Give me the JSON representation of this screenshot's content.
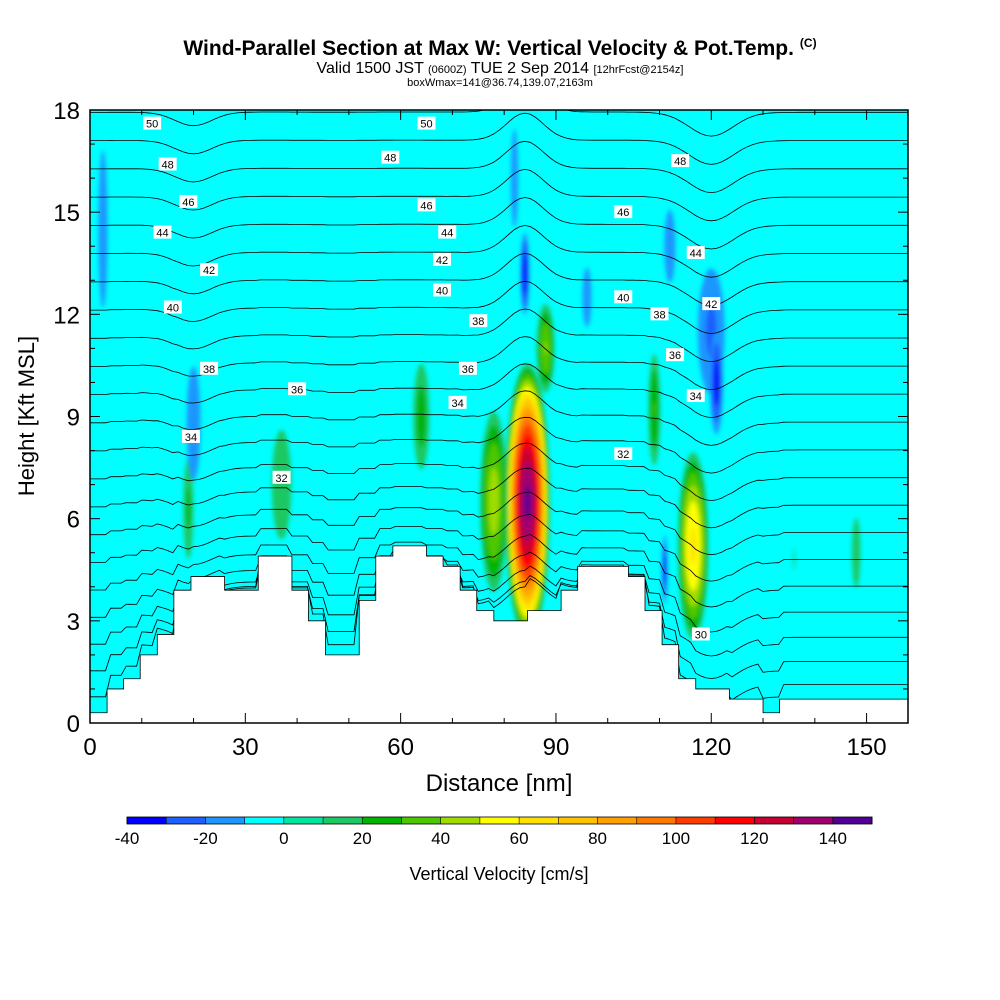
{
  "chart_data": {
    "type": "contour",
    "title": "Wind-Parallel Section at Max W: Vertical Velocity & Pot.Temp.",
    "copyright_mark": "(C)",
    "subtitle": {
      "valid": "Valid 1500 JST",
      "zulu": "(0600Z)",
      "date": "TUE 2 Sep 2014",
      "forecast": "[12hrFcst@2154z]"
    },
    "box_info": "boxWmax=141@36.74,139.07,2163m",
    "xlabel": "Distance [nm]",
    "ylabel": "Height [Kft MSL]",
    "xlim": [
      0,
      158
    ],
    "ylim": [
      0,
      18
    ],
    "x_ticks": [
      0,
      30,
      60,
      90,
      120,
      150
    ],
    "y_ticks": [
      0,
      3,
      6,
      9,
      12,
      15,
      18
    ],
    "colorbar": {
      "label": "Vertical Velocity [cm/s]",
      "levels": [
        -40,
        -30,
        -20,
        -10,
        0,
        10,
        20,
        30,
        40,
        50,
        60,
        70,
        80,
        90,
        100,
        110,
        120,
        130,
        140,
        150
      ],
      "tick_labels": [
        -40,
        -20,
        0,
        20,
        40,
        60,
        80,
        100,
        120,
        140
      ],
      "colors": [
        "#0000ff",
        "#1e5fff",
        "#1e96ff",
        "#00ffff",
        "#00e6a0",
        "#1ec864",
        "#00b400",
        "#4bc800",
        "#a0dc00",
        "#ffff00",
        "#ffe100",
        "#ffc300",
        "#ffa000",
        "#ff7800",
        "#ff3c00",
        "#ff0000",
        "#c80032",
        "#a0006e",
        "#500096"
      ],
      "background": "#00ffff"
    },
    "velocity_features": [
      {
        "x": 84.5,
        "y": 6.5,
        "rx": 4.5,
        "ry": 4.2,
        "value": 141
      },
      {
        "x": 116.5,
        "y": 5.2,
        "rx": 3.2,
        "ry": 3.0,
        "value": 62
      },
      {
        "x": 78,
        "y": 6.5,
        "rx": 3.0,
        "ry": 3.0,
        "value": 45
      },
      {
        "x": 88,
        "y": 11.0,
        "rx": 2.0,
        "ry": 1.5,
        "value": 40
      },
      {
        "x": 109,
        "y": 9.2,
        "rx": 1.4,
        "ry": 2.0,
        "value": 30
      },
      {
        "x": 64,
        "y": 9.0,
        "rx": 2.0,
        "ry": 2.0,
        "value": 25
      },
      {
        "x": 19,
        "y": 6.3,
        "rx": 1.3,
        "ry": 2.0,
        "value": 22
      },
      {
        "x": 37,
        "y": 7.0,
        "rx": 3.5,
        "ry": 3.0,
        "value": 14
      },
      {
        "x": 31,
        "y": 13.3,
        "rx": 3.5,
        "ry": 1.5,
        "value": 8
      },
      {
        "x": 12,
        "y": 11.5,
        "rx": 2.5,
        "ry": 5.0,
        "value": 7
      },
      {
        "x": 51,
        "y": 13.0,
        "rx": 2.0,
        "ry": 4.5,
        "value": 7
      },
      {
        "x": 66,
        "y": 15.5,
        "rx": 1.5,
        "ry": 2.0,
        "value": 8
      },
      {
        "x": 143,
        "y": 12.3,
        "rx": 5.0,
        "ry": 4.5,
        "value": 7
      },
      {
        "x": 148,
        "y": 5.0,
        "rx": 2.0,
        "ry": 2.5,
        "value": 12
      },
      {
        "x": 136,
        "y": 4.8,
        "rx": 1.5,
        "ry": 2.5,
        "value": 10
      },
      {
        "x": 28,
        "y": 2.9,
        "rx": 3.0,
        "ry": 2.0,
        "value": 12
      },
      {
        "x": 83,
        "y": 17.0,
        "rx": 3.0,
        "ry": 1.5,
        "value": -8
      },
      {
        "x": 84,
        "y": 13.2,
        "rx": 1.0,
        "ry": 1.4,
        "value": -38
      },
      {
        "x": 82,
        "y": 16.0,
        "rx": 1.2,
        "ry": 2.5,
        "value": -15
      },
      {
        "x": 20,
        "y": 8.8,
        "rx": 2.0,
        "ry": 2.5,
        "value": -18
      },
      {
        "x": 2.5,
        "y": 14.5,
        "rx": 1.5,
        "ry": 4.0,
        "value": -15
      },
      {
        "x": 120,
        "y": 11.5,
        "rx": 3.5,
        "ry": 2.5,
        "value": -22
      },
      {
        "x": 121,
        "y": 10.0,
        "rx": 1.5,
        "ry": 1.8,
        "value": -35
      },
      {
        "x": 112,
        "y": 14.0,
        "rx": 2.0,
        "ry": 2.0,
        "value": -14
      },
      {
        "x": 111,
        "y": 4.5,
        "rx": 0.6,
        "ry": 1.2,
        "value": -35
      },
      {
        "x": 96,
        "y": 12.5,
        "rx": 1.5,
        "ry": 1.5,
        "value": -15
      }
    ],
    "theta_levels": [
      30,
      31,
      32,
      33,
      34,
      35,
      36,
      37,
      38,
      39,
      40,
      41,
      42,
      43,
      44,
      45,
      46,
      47,
      48,
      49,
      50,
      51
    ],
    "isentrope_labels": [
      {
        "x": 12,
        "y": 17.6,
        "text": "50"
      },
      {
        "x": 65,
        "y": 17.6,
        "text": "50"
      },
      {
        "x": 15,
        "y": 16.4,
        "text": "48"
      },
      {
        "x": 58,
        "y": 16.6,
        "text": "48"
      },
      {
        "x": 114,
        "y": 16.5,
        "text": "48"
      },
      {
        "x": 19,
        "y": 15.3,
        "text": "46"
      },
      {
        "x": 65,
        "y": 15.2,
        "text": "46"
      },
      {
        "x": 103,
        "y": 15.0,
        "text": "46"
      },
      {
        "x": 14,
        "y": 14.4,
        "text": "44"
      },
      {
        "x": 69,
        "y": 14.4,
        "text": "44"
      },
      {
        "x": 117,
        "y": 13.8,
        "text": "44"
      },
      {
        "x": 23,
        "y": 13.3,
        "text": "42"
      },
      {
        "x": 68,
        "y": 13.6,
        "text": "42"
      },
      {
        "x": 120,
        "y": 12.3,
        "text": "42"
      },
      {
        "x": 16,
        "y": 12.2,
        "text": "40"
      },
      {
        "x": 68,
        "y": 12.7,
        "text": "40"
      },
      {
        "x": 103,
        "y": 12.5,
        "text": "40"
      },
      {
        "x": 75,
        "y": 11.8,
        "text": "38"
      },
      {
        "x": 110,
        "y": 12.0,
        "text": "38"
      },
      {
        "x": 23,
        "y": 10.4,
        "text": "38"
      },
      {
        "x": 73,
        "y": 10.4,
        "text": "36"
      },
      {
        "x": 113,
        "y": 10.8,
        "text": "36"
      },
      {
        "x": 40,
        "y": 9.8,
        "text": "36"
      },
      {
        "x": 71,
        "y": 9.4,
        "text": "34"
      },
      {
        "x": 117,
        "y": 9.6,
        "text": "34"
      },
      {
        "x": 19.5,
        "y": 8.4,
        "text": "34"
      },
      {
        "x": 37,
        "y": 7.2,
        "text": "32"
      },
      {
        "x": 103,
        "y": 7.9,
        "text": "32"
      },
      {
        "x": 118,
        "y": 2.6,
        "text": "30"
      }
    ],
    "terrain": [
      [
        0,
        0.3
      ],
      [
        3.3,
        0.3
      ],
      [
        3.3,
        1.0
      ],
      [
        6.5,
        1.0
      ],
      [
        6.5,
        1.3
      ],
      [
        9.7,
        1.3
      ],
      [
        9.7,
        2.0
      ],
      [
        13,
        2.0
      ],
      [
        13,
        2.6
      ],
      [
        16.2,
        2.6
      ],
      [
        16.2,
        3.9
      ],
      [
        19.5,
        3.9
      ],
      [
        19.5,
        4.3
      ],
      [
        26,
        4.3
      ],
      [
        26,
        3.9
      ],
      [
        32.5,
        3.9
      ],
      [
        32.5,
        4.9
      ],
      [
        39,
        4.9
      ],
      [
        39,
        3.9
      ],
      [
        42.2,
        3.9
      ],
      [
        42.2,
        3.0
      ],
      [
        45.5,
        3.0
      ],
      [
        45.5,
        2.0
      ],
      [
        52,
        2.0
      ],
      [
        52,
        3.6
      ],
      [
        55.2,
        3.6
      ],
      [
        55.2,
        4.9
      ],
      [
        58.5,
        4.9
      ],
      [
        58.5,
        5.2
      ],
      [
        65,
        5.2
      ],
      [
        65,
        4.9
      ],
      [
        68.2,
        4.9
      ],
      [
        68.2,
        4.6
      ],
      [
        71.5,
        4.6
      ],
      [
        71.5,
        3.9
      ],
      [
        74.7,
        3.9
      ],
      [
        74.7,
        3.3
      ],
      [
        78,
        3.3
      ],
      [
        78,
        3.0
      ],
      [
        84.5,
        3.0
      ],
      [
        84.5,
        3.3
      ],
      [
        91,
        3.3
      ],
      [
        91,
        3.9
      ],
      [
        94.2,
        3.9
      ],
      [
        94.2,
        4.6
      ],
      [
        104,
        4.6
      ],
      [
        104,
        4.3
      ],
      [
        107.2,
        4.3
      ],
      [
        107.2,
        3.3
      ],
      [
        110.5,
        3.3
      ],
      [
        110.5,
        2.3
      ],
      [
        113.7,
        2.3
      ],
      [
        113.7,
        1.3
      ],
      [
        117,
        1.3
      ],
      [
        117,
        1.0
      ],
      [
        123.5,
        1.0
      ],
      [
        123.5,
        0.7
      ],
      [
        130,
        0.7
      ],
      [
        130,
        0.3
      ],
      [
        133.2,
        0.3
      ],
      [
        133.2,
        0.7
      ],
      [
        158,
        0.7
      ]
    ]
  }
}
